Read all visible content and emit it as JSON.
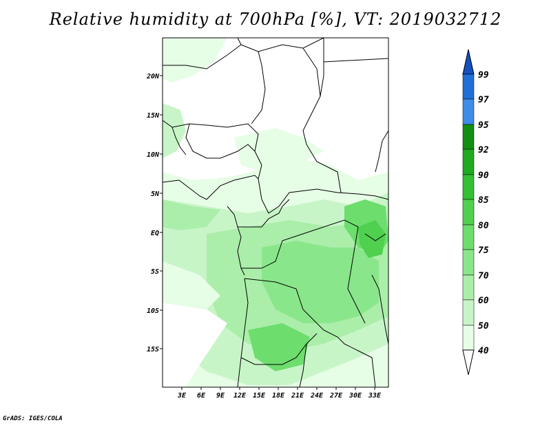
{
  "title": "Relative humidity at 700hPa [%], VT: 2019032712",
  "credit": "GrADS: IGES/COLA",
  "map": {
    "lon_range": [
      0,
      34.5
    ],
    "lat_range": [
      -19.5,
      25
    ],
    "lon_ticks": [
      "3E",
      "6E",
      "9E",
      "12E",
      "15E",
      "18E",
      "21E",
      "24E",
      "27E",
      "30E",
      "33E"
    ],
    "lat_ticks": [
      "20N",
      "15N",
      "10N",
      "5N",
      "EQ",
      "5S",
      "10S",
      "15S"
    ],
    "variable": "Relative humidity at 700hPa",
    "units": "%"
  },
  "colorbar": {
    "levels": [
      "40",
      "50",
      "60",
      "70",
      "75",
      "80",
      "85",
      "90",
      "92",
      "95",
      "97",
      "99"
    ],
    "colors": [
      "#ffffff",
      "#e6fde6",
      "#c8f5c8",
      "#aaeeaa",
      "#8ae68a",
      "#6ddd6d",
      "#4fd04f",
      "#33c033",
      "#1faa1f",
      "#128f12",
      "#3d8ce8",
      "#1f6fd8",
      "#1450bf"
    ]
  }
}
